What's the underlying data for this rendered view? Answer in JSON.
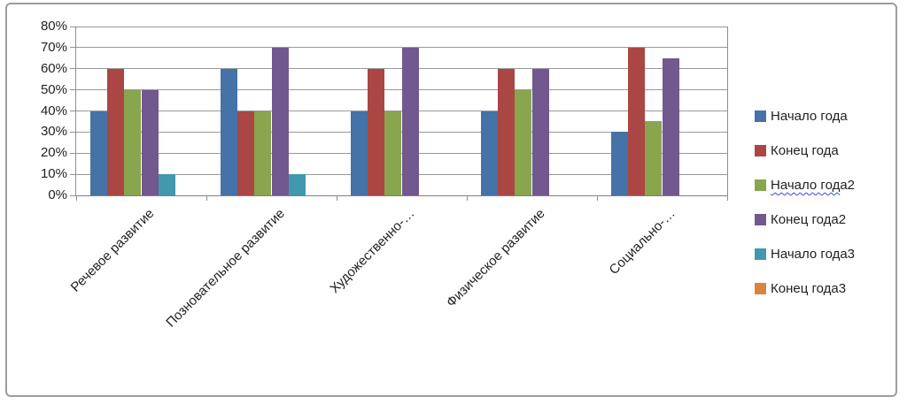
{
  "window": {
    "background": "#ffffff",
    "frame_border_color": "#9d9d9d"
  },
  "chart_data": {
    "type": "bar",
    "title": "",
    "xlabel": "",
    "ylabel": "",
    "categories": [
      "Речевое развитие",
      "Позновательное развитие",
      "Художественно-…",
      "Физическое развитие",
      "Социально-…"
    ],
    "series": [
      {
        "name": "Начало года",
        "color": "#4572a7",
        "values": [
          40,
          60,
          40,
          40,
          30
        ]
      },
      {
        "name": "Конец года",
        "color": "#aa4643",
        "values": [
          60,
          40,
          60,
          60,
          70
        ]
      },
      {
        "name": "Начало года2",
        "color": "#89a54e",
        "values": [
          50,
          40,
          40,
          50,
          35
        ]
      },
      {
        "name": "Конец года2",
        "color": "#71588f",
        "values": [
          50,
          70,
          70,
          60,
          65
        ]
      },
      {
        "name": "Начало года3",
        "color": "#4198af",
        "values": [
          10,
          10,
          0,
          0,
          0
        ]
      },
      {
        "name": "Конец года3",
        "color": "#db843d",
        "values": [
          0,
          0,
          0,
          0,
          0
        ]
      }
    ],
    "ylim": [
      0,
      80
    ],
    "ytick_step": 10,
    "ytick_labels": [
      "0%",
      "10%",
      "20%",
      "30%",
      "40%",
      "50%",
      "60%",
      "70%",
      "80%"
    ],
    "grid": true,
    "gridline_color": "#999999",
    "axis_color": "#8e8e8e",
    "legend_position": "right-center",
    "x_label_rotation_deg": 45,
    "spellcheck_underline": {
      "item": "Начало года2",
      "under_part": "Начало год"
    }
  }
}
